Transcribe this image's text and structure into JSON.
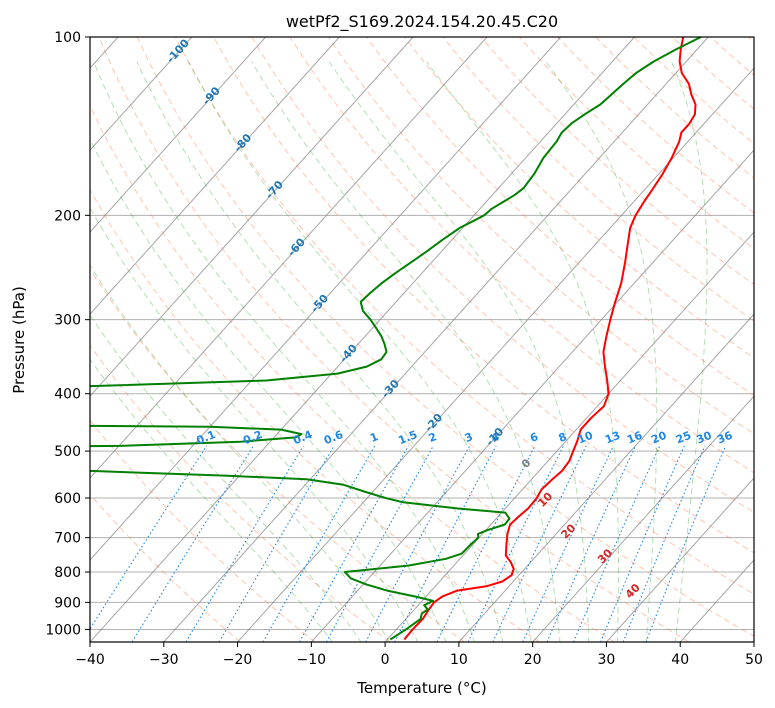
{
  "chart_data": {
    "type": "line",
    "subtype": "skew-t log-p diagram",
    "title": "wetPf2_S169.2024.154.20.45.C20",
    "xlabel": "Temperature (°C)",
    "ylabel": "Pressure (hPa)",
    "xlim": [
      -40,
      50
    ],
    "ylim": [
      1050,
      100
    ],
    "y_scale": "log",
    "grid": true,
    "x_ticks": [
      -40,
      -30,
      -20,
      -10,
      0,
      10,
      20,
      30,
      40,
      50
    ],
    "y_ticks": [
      100,
      200,
      300,
      400,
      500,
      600,
      700,
      800,
      900,
      1000
    ],
    "isotherm_labels": [
      -100,
      -90,
      -80,
      -70,
      -60,
      -50,
      -40,
      -30,
      -20,
      -10
    ],
    "mixing_ratio_labels": [
      "0.1",
      "0.2",
      "0.4",
      "0.6",
      "1",
      "1.5",
      "2",
      "3",
      "4",
      "6",
      "8",
      "10",
      "13",
      "16",
      "20",
      "25",
      "30",
      "36"
    ],
    "moist_adiabat_labels": [
      "0",
      "10",
      "20",
      "30",
      "40"
    ],
    "colors": {
      "temperature": "#ff0000",
      "dewpoint": "#008000",
      "isotherm_label": "#1f77b4",
      "mixing_ratio": "#1e88e5",
      "moist_adiabat_label": "#d62728",
      "zero_label": "#808080",
      "dry_adiabat": "#ff7f50",
      "moist_adiabat": "#2ca02c",
      "isotherm": "#808080",
      "grid": "#b0b0b0"
    },
    "series": [
      {
        "profile": "temperature",
        "points": [
          [
            1040,
            2.3
          ],
          [
            1000,
            2.2
          ],
          [
            960,
            2.3
          ],
          [
            930,
            2.0
          ],
          [
            900,
            1.8
          ],
          [
            880,
            2.2
          ],
          [
            860,
            3.5
          ],
          [
            845,
            7.0
          ],
          [
            830,
            8.5
          ],
          [
            810,
            9.0
          ],
          [
            790,
            8.5
          ],
          [
            770,
            7.3
          ],
          [
            750,
            5.8
          ],
          [
            720,
            4.6
          ],
          [
            690,
            3.4
          ],
          [
            665,
            2.6
          ],
          [
            645,
            2.8
          ],
          [
            625,
            3.1
          ],
          [
            600,
            3.0
          ],
          [
            580,
            2.6
          ],
          [
            560,
            2.8
          ],
          [
            540,
            3.1
          ],
          [
            520,
            2.9
          ],
          [
            500,
            2.2
          ],
          [
            480,
            1.5
          ],
          [
            460,
            0.6
          ],
          [
            440,
            0.6
          ],
          [
            420,
            0.9
          ],
          [
            400,
            0.0
          ],
          [
            380,
            -1.8
          ],
          [
            360,
            -3.8
          ],
          [
            340,
            -5.8
          ],
          [
            320,
            -7.3
          ],
          [
            300,
            -8.8
          ],
          [
            280,
            -10.3
          ],
          [
            260,
            -11.8
          ],
          [
            240,
            -13.8
          ],
          [
            225,
            -15.5
          ],
          [
            210,
            -17.3
          ],
          [
            200,
            -18.1
          ],
          [
            190,
            -18.6
          ],
          [
            180,
            -19.0
          ],
          [
            170,
            -19.5
          ],
          [
            160,
            -20.2
          ],
          [
            150,
            -21.2
          ],
          [
            145,
            -22.0
          ],
          [
            140,
            -22.0
          ],
          [
            135,
            -22.4
          ],
          [
            130,
            -23.5
          ],
          [
            125,
            -25.3
          ],
          [
            120,
            -26.9
          ],
          [
            115,
            -29.2
          ],
          [
            110,
            -30.9
          ],
          [
            105,
            -32.2
          ],
          [
            100,
            -33.4
          ]
        ]
      },
      {
        "profile": "dewpoint",
        "points": [
          [
            1040,
            0.4
          ],
          [
            1000,
            1.3
          ],
          [
            960,
            2.0
          ],
          [
            940,
            1.5
          ],
          [
            925,
            1.8
          ],
          [
            910,
            0.8
          ],
          [
            895,
            1.5
          ],
          [
            880,
            -1.4
          ],
          [
            860,
            -6.0
          ],
          [
            840,
            -9.5
          ],
          [
            820,
            -12.4
          ],
          [
            800,
            -14.0
          ],
          [
            780,
            -6.1
          ],
          [
            760,
            -1.9
          ],
          [
            745,
            -0.4
          ],
          [
            720,
            -0.3
          ],
          [
            700,
            -0.1
          ],
          [
            690,
            -0.6
          ],
          [
            680,
            0.2
          ],
          [
            665,
            1.9
          ],
          [
            650,
            1.8
          ],
          [
            635,
            0.5
          ],
          [
            625,
            -6.4
          ],
          [
            610,
            -14.6
          ],
          [
            600,
            -17.5
          ],
          [
            585,
            -21.2
          ],
          [
            570,
            -24.8
          ],
          [
            558,
            -30.5
          ],
          [
            550,
            -42
          ],
          [
            520,
            -100
          ],
          [
            495,
            -100
          ],
          [
            490,
            -60
          ],
          [
            482,
            -44
          ],
          [
            474,
            -37.1
          ],
          [
            468,
            -36.7
          ],
          [
            460,
            -40
          ],
          [
            455,
            -50
          ],
          [
            450,
            -100
          ],
          [
            395,
            -100
          ],
          [
            388,
            -70
          ],
          [
            380,
            -48
          ],
          [
            370,
            -39.2
          ],
          [
            360,
            -36.1
          ],
          [
            350,
            -35.0
          ],
          [
            340,
            -35.2
          ],
          [
            330,
            -36.4
          ],
          [
            320,
            -37.8
          ],
          [
            310,
            -39.5
          ],
          [
            300,
            -41.3
          ],
          [
            290,
            -43.4
          ],
          [
            280,
            -44.8
          ],
          [
            270,
            -44.6
          ],
          [
            260,
            -44.2
          ],
          [
            250,
            -43.6
          ],
          [
            240,
            -42.8
          ],
          [
            230,
            -42.0
          ],
          [
            220,
            -41.3
          ],
          [
            210,
            -40.4
          ],
          [
            205,
            -39.5
          ],
          [
            200,
            -38.6
          ],
          [
            195,
            -38.4
          ],
          [
            190,
            -37.7
          ],
          [
            185,
            -37.0
          ],
          [
            180,
            -36.6
          ],
          [
            170,
            -36.9
          ],
          [
            160,
            -37.6
          ],
          [
            150,
            -37.8
          ],
          [
            145,
            -38.2
          ],
          [
            140,
            -38.0
          ],
          [
            135,
            -37.3
          ],
          [
            130,
            -36.4
          ],
          [
            125,
            -36.1
          ],
          [
            120,
            -35.8
          ],
          [
            115,
            -35.4
          ],
          [
            110,
            -34.4
          ],
          [
            105,
            -32.9
          ],
          [
            100,
            -31.0
          ]
        ]
      }
    ]
  }
}
